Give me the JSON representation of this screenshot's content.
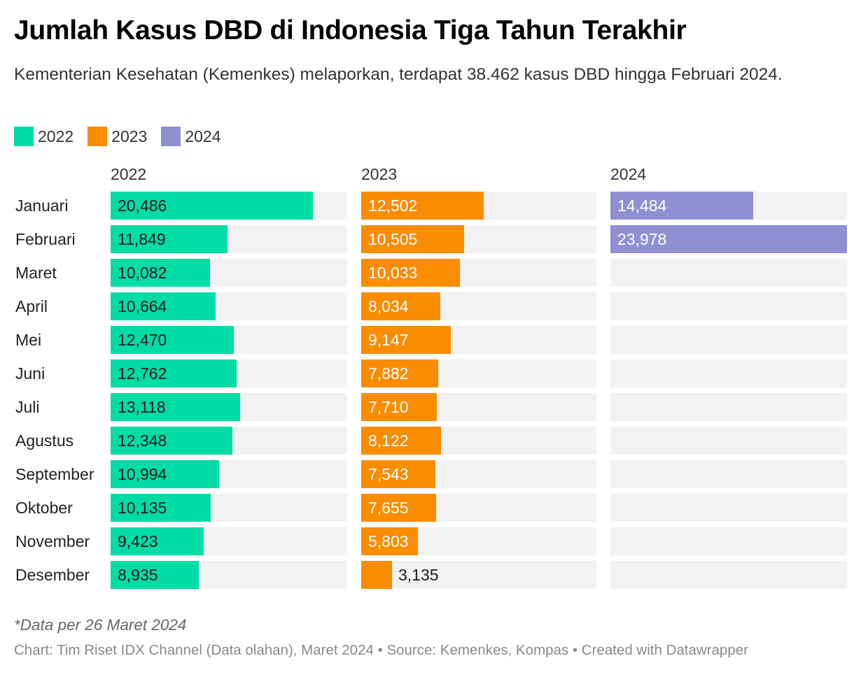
{
  "header": {
    "title": "Jumlah Kasus DBD di Indonesia Tiga Tahun Terakhir",
    "subtitle": "Kementerian Kesehatan (Kemenkes) melaporkan, terdapat 38.462 kasus DBD hingga Februari 2024."
  },
  "legend": [
    {
      "label": "2022",
      "color": "#00dca6"
    },
    {
      "label": "2023",
      "color": "#fa8c00"
    },
    {
      "label": "2024",
      "color": "#8f8fd1"
    }
  ],
  "chart_data": {
    "type": "bar",
    "categories": [
      "Januari",
      "Februari",
      "Maret",
      "April",
      "Mei",
      "Juni",
      "Juli",
      "Agustus",
      "September",
      "Oktober",
      "November",
      "Desember"
    ],
    "xlim": [
      0,
      23978
    ],
    "series": [
      {
        "name": "2022",
        "color": "#00dca6",
        "values": [
          20486,
          11849,
          10082,
          10664,
          12470,
          12762,
          13118,
          12348,
          10994,
          10135,
          9423,
          8935
        ],
        "labels": [
          "20,486",
          "11,849",
          "10,082",
          "10,664",
          "12,470",
          "12,762",
          "13,118",
          "12,348",
          "10,994",
          "10,135",
          "9,423",
          "8,935"
        ]
      },
      {
        "name": "2023",
        "color": "#fa8c00",
        "values": [
          12502,
          10505,
          10033,
          8034,
          9147,
          7882,
          7710,
          8122,
          7543,
          7655,
          5803,
          3135
        ],
        "labels": [
          "12,502",
          "10,505",
          "10,033",
          "8,034",
          "9,147",
          "7,882",
          "7,710",
          "8,122",
          "7,543",
          "7,655",
          "5,803",
          "3,135"
        ]
      },
      {
        "name": "2024",
        "color": "#8f8fd1",
        "values": [
          14484,
          23978,
          null,
          null,
          null,
          null,
          null,
          null,
          null,
          null,
          null,
          null
        ],
        "labels": [
          "14,484",
          "23,978",
          "",
          "",
          "",
          "",
          "",
          "",
          "",
          "",
          "",
          ""
        ]
      }
    ]
  },
  "notes": {
    "note": "*Data per 26 Maret 2024",
    "footer": "Chart: Tim Riset IDX Channel (Data olahan), Maret 2024 • Source: Kemenkes, Kompas • Created with Datawrapper"
  }
}
